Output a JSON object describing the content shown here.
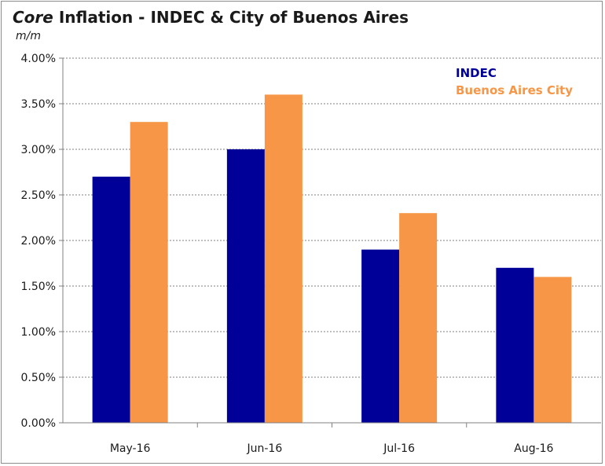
{
  "chart_data": {
    "type": "bar",
    "title_em": "Core",
    "title_rest": " Inflation  - INDEC & City of Buenos Aires",
    "subtitle": "m/m",
    "categories": [
      "May-16",
      "Jun-16",
      "Jul-16",
      "Aug-16"
    ],
    "series": [
      {
        "name": "INDEC",
        "color": "#000099",
        "values": [
          2.7,
          3.0,
          1.9,
          1.7
        ]
      },
      {
        "name": "Buenos Aires City",
        "color": "#F79646",
        "values": [
          3.3,
          3.6,
          2.3,
          1.6
        ]
      }
    ],
    "ylim": [
      0,
      4
    ],
    "ytick_labels": [
      "0.00%",
      "0.50%",
      "1.00%",
      "1.50%",
      "2.00%",
      "2.50%",
      "3.00%",
      "3.50%",
      "4.00%"
    ],
    "grid": true,
    "legend_position": "top-right"
  }
}
